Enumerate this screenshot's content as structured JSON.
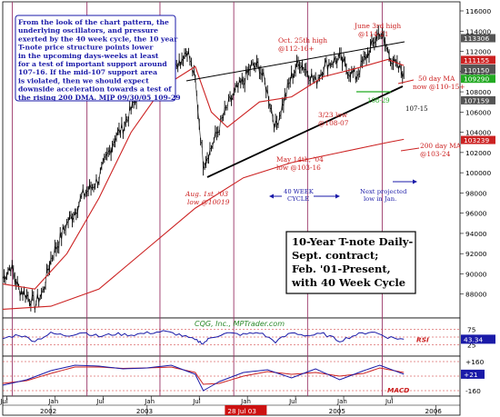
{
  "chart_data": {
    "type": "line",
    "title": "10-Year T-note Daily-",
    "title_lines": [
      "10-Year T-note Daily-",
      "Sept. contract;",
      "Feb. '01-Present,",
      "with 40 Week Cycle"
    ],
    "commentary_lines": [
      "From the look of the chart pattern, the",
      "underlying oscillators, and pressure",
      "exerted by the 40 week cycle, the 10 year",
      "T-note price structure points lower",
      "in the upcoming days-weeks at least",
      "for a test of important support around",
      "107-16. If the mid-107 support area",
      "is violated, then we should expect",
      "downside acceleration towards a test of",
      "the rising 200 DMA. MJP 09/30/05  109-29"
    ],
    "ylim": [
      86000,
      116000
    ],
    "y_ticks": [
      {
        "value": 116000,
        "label": "116000"
      },
      {
        "value": 114000,
        "label": "114000"
      },
      {
        "value": 112000,
        "label": "112000"
      },
      {
        "value": 110000,
        "label": "110000"
      },
      {
        "value": 108000,
        "label": "108000"
      },
      {
        "value": 106000,
        "label": "106000"
      },
      {
        "value": 104000,
        "label": "104000"
      },
      {
        "value": 102000,
        "label": "102000"
      },
      {
        "value": 100000,
        "label": "100000"
      },
      {
        "value": 98000,
        "label": "98000"
      },
      {
        "value": 96000,
        "label": "96000"
      },
      {
        "value": 94000,
        "label": "94000"
      },
      {
        "value": 92000,
        "label": "92000"
      },
      {
        "value": 90000,
        "label": "90000"
      },
      {
        "value": 88000,
        "label": "88000"
      }
    ],
    "price_tags": [
      {
        "value": 113306,
        "label": "113306",
        "color": "#555555"
      },
      {
        "value": 111155,
        "label": "111155",
        "color": "#cc2222"
      },
      {
        "value": 110295,
        "label": "110295",
        "color": "#555555"
      },
      {
        "value": 110150,
        "label": "110150",
        "color": "#555555"
      },
      {
        "value": 109290,
        "label": "109290",
        "color": "#22aa22"
      },
      {
        "value": 107159,
        "label": "107159",
        "color": "#555555"
      },
      {
        "value": 103239,
        "label": "103239",
        "color": "#cc2222"
      }
    ],
    "x_axis": {
      "tick_labels": [
        "Jul",
        "Jan",
        "Jul",
        "Jan",
        "Jul",
        "Jan",
        "Jul",
        "Jan",
        "Jul"
      ],
      "tick_positions": [
        0.5,
        6.5,
        12.5,
        18.5,
        24.5,
        30.5,
        36.5,
        42.5,
        48.5
      ],
      "year_labels": [
        "2002",
        "2003",
        "2004",
        "2005",
        "2006"
      ],
      "year_positions": [
        6,
        18,
        30,
        42,
        54
      ],
      "highlight_label": "28 Jul 03",
      "highlight_position": 30.3,
      "month_range": [
        0,
        57
      ]
    },
    "price": {
      "month": [
        0,
        1,
        2,
        3,
        4,
        5,
        6,
        7,
        8,
        9,
        10,
        11,
        12,
        13,
        14,
        15,
        16,
        17,
        18,
        19,
        20,
        21,
        22,
        23,
        24,
        25,
        26,
        27,
        28,
        29,
        30,
        31,
        32,
        33,
        34,
        35,
        36,
        37,
        38,
        39,
        40,
        41,
        42,
        43,
        44,
        45,
        46,
        47,
        48,
        49,
        50
      ],
      "value": [
        89500,
        90800,
        88500,
        87900,
        87000,
        88200,
        91500,
        93200,
        95000,
        96200,
        97800,
        98500,
        99500,
        101500,
        103500,
        104500,
        106200,
        108000,
        109500,
        108500,
        110000,
        111500,
        111000,
        112200,
        109000,
        101000,
        102500,
        104500,
        106500,
        108000,
        109000,
        110500,
        110500,
        108000,
        104500,
        107000,
        109500,
        111000,
        110000,
        109000,
        110500,
        111000,
        111300,
        110200,
        109500,
        111000,
        112500,
        114000,
        112000,
        110500,
        109900
      ]
    },
    "ma50": {
      "month": [
        0,
        4,
        8,
        12,
        16,
        20,
        24,
        26,
        28,
        32,
        36,
        40,
        44,
        48,
        50
      ],
      "value": [
        89000,
        88500,
        92000,
        97500,
        104000,
        108500,
        110500,
        106000,
        104500,
        107000,
        107500,
        109500,
        110300,
        111200,
        110600
      ]
    },
    "ma200": {
      "month": [
        0,
        6,
        12,
        18,
        24,
        30,
        36,
        42,
        48,
        50
      ],
      "value": [
        86500,
        86800,
        88500,
        92500,
        96500,
        99500,
        101000,
        102000,
        103000,
        103300
      ]
    },
    "rsi": {
      "levels": [
        {
          "value": 75,
          "label": "75"
        },
        {
          "value": 50,
          "label": "50"
        },
        {
          "value": 25,
          "label": "25"
        }
      ],
      "current_label": "43.34",
      "name": "RSI",
      "month": [
        0,
        2,
        4,
        6,
        8,
        10,
        12,
        14,
        16,
        18,
        20,
        22,
        24,
        25,
        26,
        28,
        30,
        32,
        34,
        36,
        38,
        40,
        42,
        44,
        46,
        48,
        50
      ],
      "value": [
        45,
        58,
        38,
        62,
        55,
        66,
        52,
        60,
        57,
        63,
        68,
        58,
        40,
        30,
        50,
        62,
        58,
        65,
        35,
        64,
        55,
        60,
        38,
        57,
        68,
        50,
        43
      ]
    },
    "macd": {
      "levels": [
        {
          "value": 160,
          "label": "+160"
        },
        {
          "value": 0,
          "label": "0"
        },
        {
          "value": -160,
          "label": "-160"
        }
      ],
      "current_label": "+21",
      "name": "MACD",
      "month": [
        0,
        3,
        6,
        9,
        12,
        15,
        18,
        21,
        24,
        25,
        27,
        30,
        33,
        36,
        39,
        42,
        45,
        47,
        50
      ],
      "macd": [
        -100,
        -40,
        60,
        120,
        110,
        80,
        90,
        120,
        20,
        -160,
        -60,
        40,
        70,
        -20,
        80,
        -40,
        60,
        120,
        21
      ],
      "signal": [
        -80,
        -50,
        30,
        100,
        100,
        85,
        90,
        100,
        40,
        -90,
        -80,
        0,
        50,
        20,
        40,
        0,
        30,
        90,
        40
      ]
    },
    "cycle_months": [
      1.2,
      10.5,
      19.6,
      28.8,
      38,
      47.3
    ],
    "annotations": [
      {
        "label": "Oct. 25th high",
        "sub": "@112-16+"
      },
      {
        "label": "June 3rd high",
        "sub": "@114-21"
      },
      {
        "label": "3/23 low",
        "sub": "@108-07"
      },
      {
        "label": "May 14th, '04",
        "sub": "low @103-16"
      },
      {
        "label": "Aug. 1st, '03",
        "sub": "low @10019"
      },
      {
        "label": "50 day MA",
        "sub": "now @110-15+"
      },
      {
        "label": "200 day MA",
        "sub": "@103-24"
      },
      {
        "label": "40 WEEK",
        "sub": "CYCLE"
      },
      {
        "label": "Next projected",
        "sub": "low in Jan."
      },
      {
        "label": "108-29",
        "sub": ""
      },
      {
        "label": "107-15",
        "sub": ""
      }
    ],
    "watermark": "CQG, Inc., MPTrader.com",
    "colors": {
      "price": "#000000",
      "ma50": "#cc2222",
      "ma200": "#cc2222",
      "cycle": "#993366",
      "rsi": "#1a1aa8",
      "macd": "#1a1aa8",
      "signal": "#cc2222",
      "annotation_red": "#cc2222",
      "annotation_blue": "#1a1aa8",
      "trend_support": "#22aa22"
    }
  }
}
